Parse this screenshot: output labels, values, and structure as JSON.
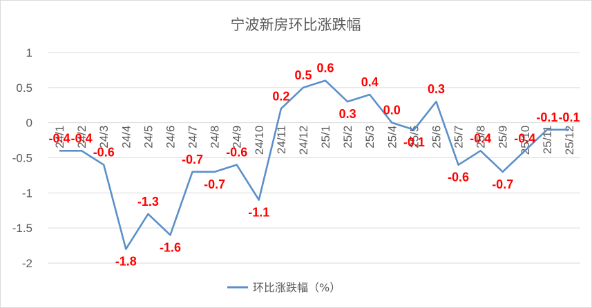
{
  "chart_data": {
    "type": "line",
    "title": "宁波新房环比涨跌幅",
    "categories": [
      "24/1",
      "24/2",
      "24/3",
      "24/4",
      "24/5",
      "24/6",
      "24/7",
      "24/8",
      "24/9",
      "24/10",
      "24/11",
      "24/12",
      "25/1",
      "25/2",
      "25/3",
      "25/4",
      "25/5",
      "25/6",
      "25/7",
      "25/8",
      "25/9",
      "25/10",
      "25/11",
      "25/12"
    ],
    "series": [
      {
        "name": "环比涨跌幅（%）",
        "values": [
          -0.4,
          -0.4,
          -0.6,
          -1.8,
          -1.3,
          -1.6,
          -0.7,
          -0.7,
          -0.6,
          -1.1,
          0.2,
          0.5,
          0.6,
          0.3,
          0.4,
          0.0,
          -0.1,
          0.3,
          -0.6,
          -0.4,
          -0.7,
          -0.4,
          -0.1,
          -0.1
        ],
        "labels": [
          "-0.4",
          "-0.4",
          "-0.6",
          "-1.8",
          "-1.3",
          "-1.6",
          "-0.7",
          "-0.7",
          "-0.6",
          "-1.1",
          "0.2",
          "0.5",
          "0.6",
          "0.3",
          "0.4",
          "0.0",
          "-0.1",
          "0.3",
          "-0.6",
          "-0.4",
          "-0.7",
          "-0.4",
          "-0.1",
          "-0.1"
        ]
      }
    ],
    "yticks": [
      "1",
      "0.5",
      "0",
      "-0.5",
      "-1",
      "-1.5",
      "-2"
    ],
    "ylim": [
      -2,
      1
    ],
    "grid": true,
    "legend": "bottom",
    "colors": {
      "line": "#5b8fc9",
      "data_label": "#ff0000"
    }
  }
}
